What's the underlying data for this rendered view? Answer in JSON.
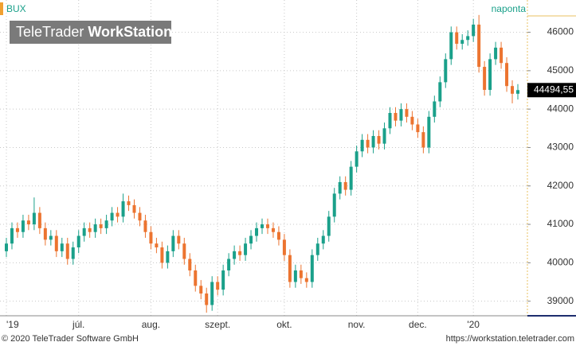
{
  "chart_data": {
    "type": "candlestick",
    "watermark": [
      "TeleTrader",
      "WorkStation"
    ],
    "period": "naponta",
    "footer_left": "© 2020 TeleTrader Software GmbH",
    "footer_right": "https://workstation.teletrader.com",
    "up_color": "#1aa08a",
    "down_color": "#ec7430",
    "ylim": [
      38620,
      46840
    ],
    "yticks": [
      39000,
      40000,
      41000,
      42000,
      43000,
      44000,
      45000,
      46000
    ],
    "grid": true,
    "last_price": {
      "value": 44494.55,
      "label": "44494,55"
    },
    "categories": [
      "'19",
      null,
      null,
      null,
      null,
      null,
      null,
      null,
      null,
      null,
      null,
      null,
      null,
      "júl.",
      null,
      null,
      null,
      null,
      null,
      null,
      null,
      null,
      null,
      null,
      null,
      null,
      "aug.",
      null,
      null,
      null,
      null,
      null,
      null,
      null,
      null,
      null,
      null,
      null,
      "szept.",
      null,
      null,
      null,
      null,
      null,
      null,
      null,
      null,
      null,
      null,
      null,
      "okt.",
      null,
      null,
      null,
      null,
      null,
      null,
      null,
      null,
      null,
      null,
      null,
      null,
      "nov.",
      null,
      null,
      null,
      null,
      null,
      null,
      null,
      null,
      null,
      null,
      "dec.",
      null,
      null,
      null,
      null,
      null,
      null,
      null,
      null,
      null,
      "'20",
      null,
      null,
      null,
      null,
      null,
      null,
      null,
      null
    ],
    "series": [
      {
        "name": "BUX",
        "open": [
          40300,
          40500,
          40900,
          40800,
          41100,
          41000,
          41300,
          40900,
          40600,
          40700,
          40300,
          40500,
          40100,
          40400,
          40700,
          40900,
          40800,
          41000,
          40900,
          41100,
          41300,
          41200,
          41600,
          41500,
          41300,
          41100,
          40800,
          40500,
          40400,
          40000,
          40300,
          40700,
          40500,
          40100,
          39800,
          39400,
          39200,
          38900,
          39500,
          39300,
          39800,
          40100,
          40300,
          40200,
          40500,
          40700,
          40900,
          41000,
          40900,
          40800,
          40600,
          40200,
          39500,
          39800,
          39600,
          39500,
          40200,
          40500,
          40700,
          41200,
          41800,
          42100,
          41900,
          42500,
          42900,
          43200,
          43000,
          43300,
          43100,
          43500,
          43900,
          43700,
          44000,
          43800,
          43600,
          43400,
          43000,
          43800,
          44200,
          44700,
          45300,
          46000,
          45700,
          45800,
          45900,
          46200,
          45100,
          44500,
          45300,
          45600,
          45200,
          44600,
          44400
        ],
        "high": [
          40650,
          41050,
          41050,
          41250,
          41250,
          41700,
          41450,
          41050,
          40850,
          40850,
          40650,
          40650,
          40550,
          40850,
          41050,
          41050,
          41150,
          41150,
          41250,
          41450,
          41450,
          41800,
          41750,
          41650,
          41450,
          41250,
          40950,
          40650,
          40550,
          40450,
          40850,
          40850,
          40650,
          40250,
          39950,
          39550,
          39350,
          39650,
          39650,
          39950,
          40250,
          40450,
          40450,
          40650,
          40850,
          41050,
          41150,
          41150,
          41050,
          40950,
          40750,
          40350,
          39950,
          39950,
          39750,
          40350,
          40650,
          40850,
          41350,
          41950,
          42250,
          42250,
          42650,
          43050,
          43350,
          43350,
          43450,
          43450,
          43650,
          44050,
          44050,
          44150,
          44150,
          43950,
          43750,
          43550,
          43950,
          44350,
          44850,
          45450,
          46150,
          46150,
          45950,
          46050,
          46350,
          46450,
          45250,
          45450,
          45750,
          45750,
          45350,
          44750,
          44650
        ],
        "low": [
          40150,
          40350,
          40650,
          40650,
          40850,
          40850,
          40750,
          40450,
          40450,
          40150,
          40150,
          39950,
          39950,
          40250,
          40550,
          40650,
          40650,
          40750,
          40750,
          40950,
          41050,
          41050,
          41350,
          41150,
          40950,
          40650,
          40350,
          40250,
          39850,
          39850,
          40150,
          40350,
          39950,
          39650,
          39250,
          39050,
          38700,
          38750,
          39150,
          39150,
          39650,
          39950,
          40050,
          40050,
          40350,
          40550,
          40750,
          40750,
          40650,
          40450,
          40050,
          39350,
          39350,
          39450,
          39350,
          39350,
          40050,
          40350,
          40550,
          41050,
          41650,
          41750,
          41750,
          42350,
          42750,
          42850,
          42850,
          42950,
          42950,
          43350,
          43550,
          43550,
          43650,
          43450,
          43250,
          42850,
          42850,
          43650,
          44050,
          44550,
          45150,
          45550,
          45550,
          45650,
          45750,
          44950,
          44350,
          44350,
          45150,
          45050,
          44450,
          44150,
          44250
        ],
        "close": [
          40500,
          40900,
          40800,
          41100,
          41000,
          41300,
          40900,
          40600,
          40700,
          40300,
          40500,
          40100,
          40400,
          40700,
          40900,
          40800,
          41000,
          40900,
          41100,
          41300,
          41200,
          41600,
          41500,
          41300,
          41100,
          40800,
          40500,
          40400,
          40000,
          40300,
          40700,
          40500,
          40100,
          39800,
          39400,
          39200,
          38900,
          39500,
          39300,
          39800,
          40100,
          40300,
          40200,
          40500,
          40700,
          40900,
          41000,
          40900,
          40800,
          40600,
          40200,
          39500,
          39800,
          39600,
          39500,
          40200,
          40500,
          40700,
          41200,
          41800,
          42100,
          41900,
          42500,
          42900,
          43200,
          43000,
          43300,
          43100,
          43500,
          43900,
          43700,
          44000,
          43800,
          43600,
          43400,
          43000,
          43800,
          44200,
          44700,
          45300,
          46000,
          45700,
          45800,
          45900,
          46200,
          45100,
          44500,
          45300,
          45600,
          45200,
          44600,
          44400,
          44494.55
        ]
      }
    ]
  }
}
